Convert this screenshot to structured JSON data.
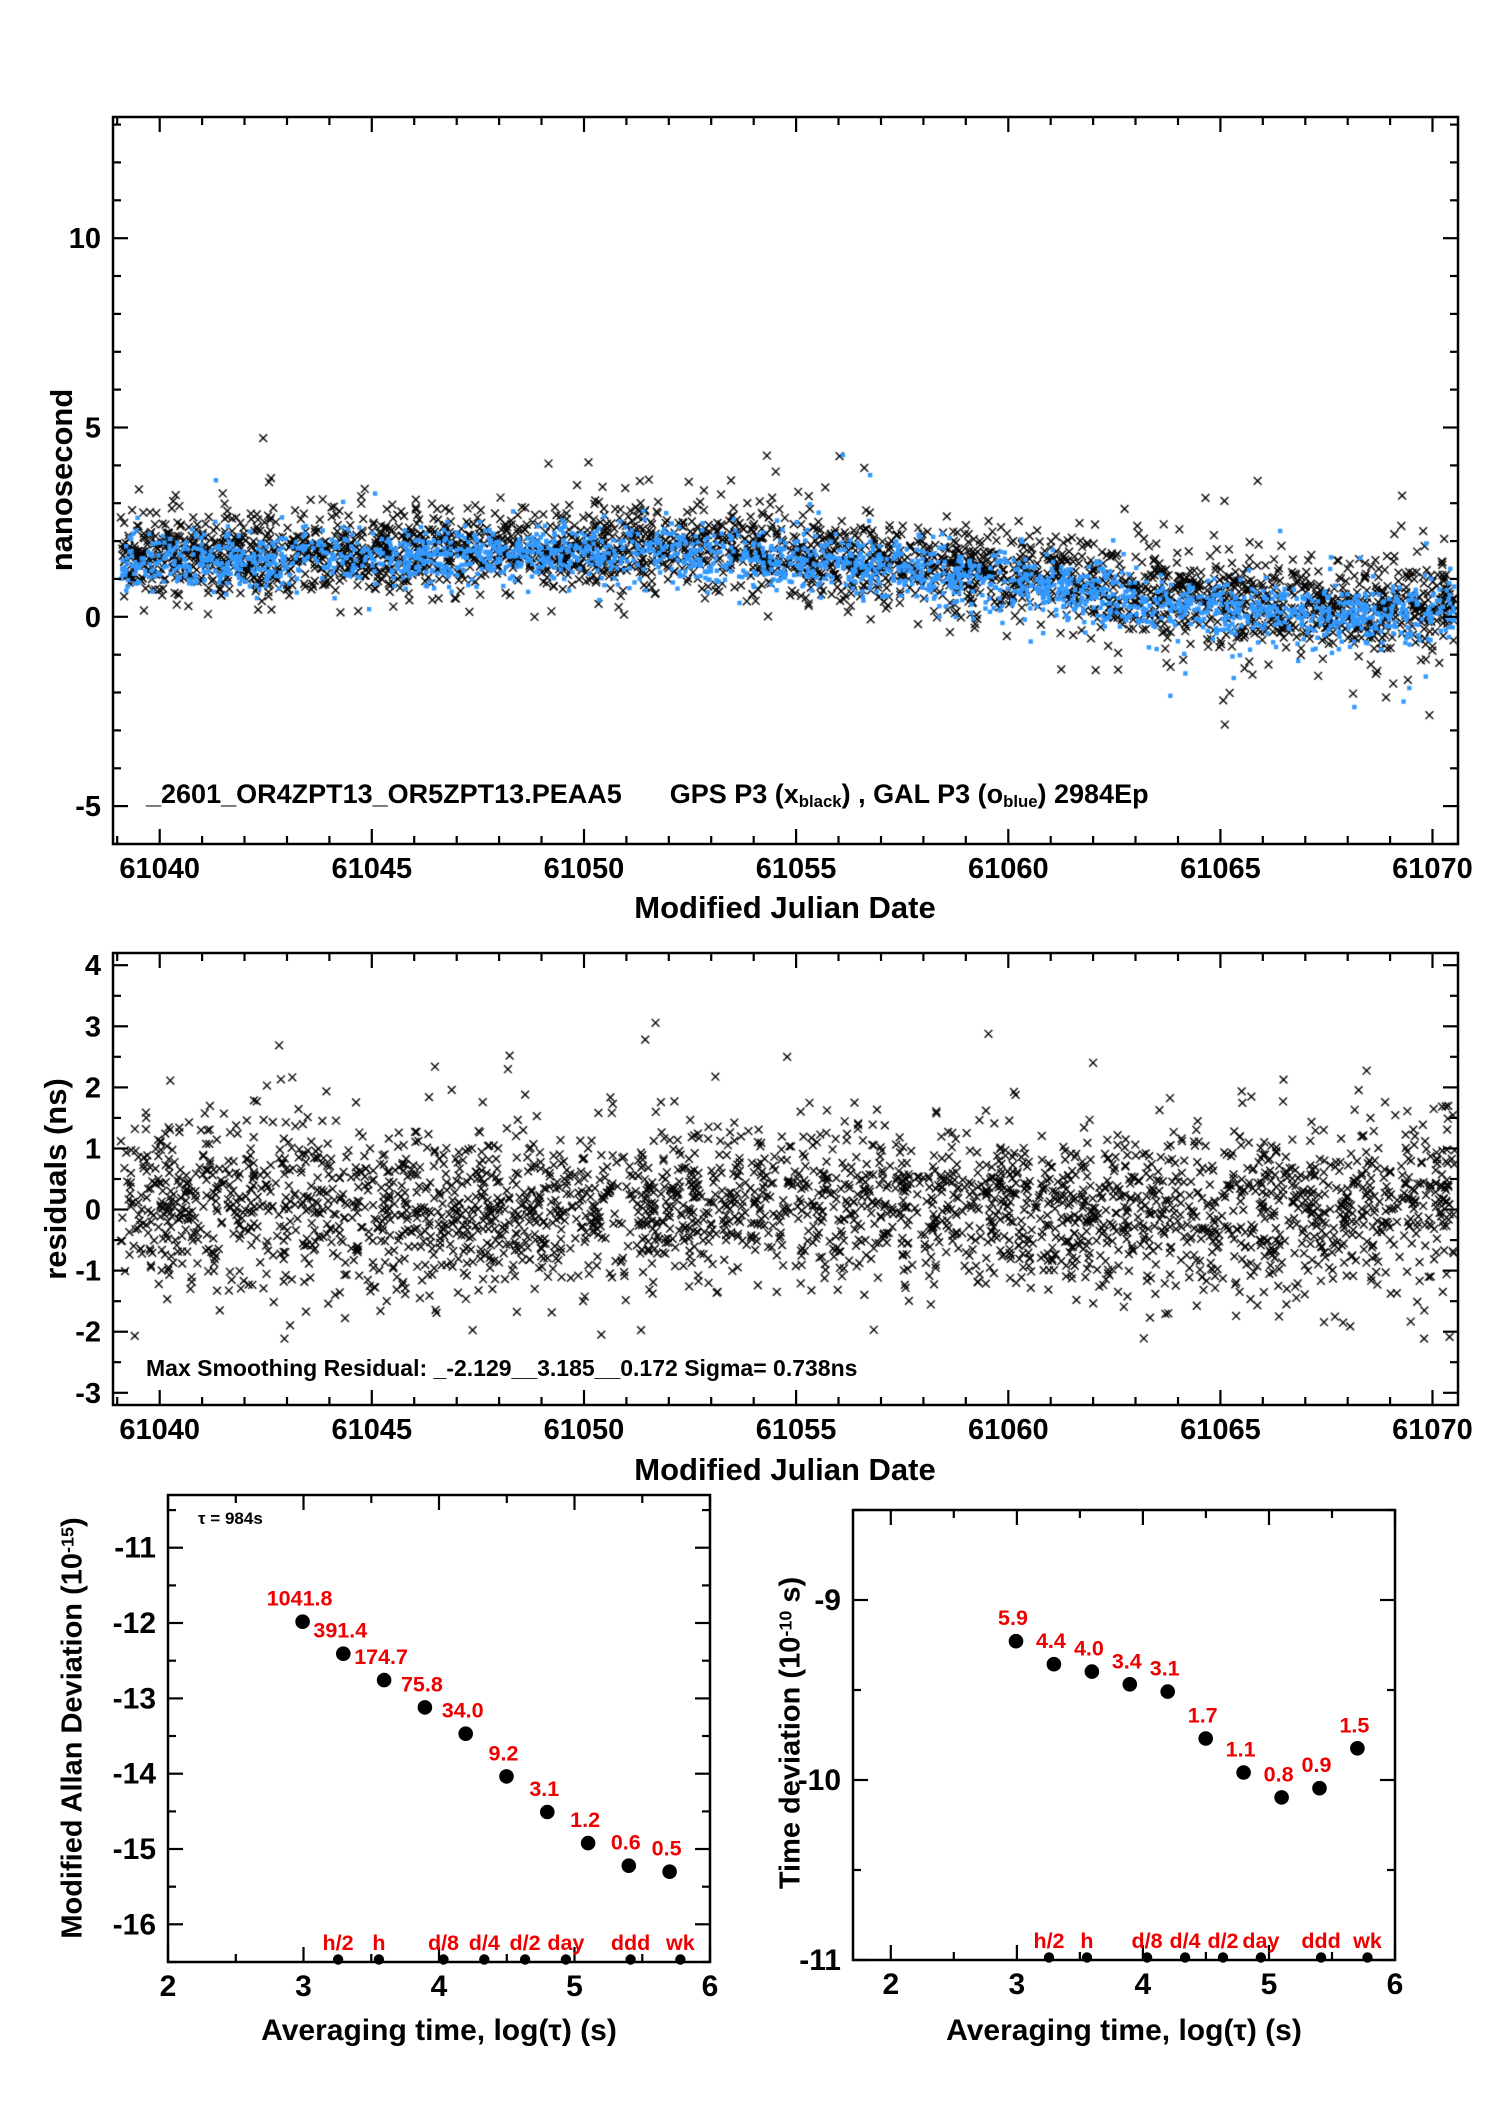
{
  "page": {
    "background": "#ffffff",
    "foreground": "#000000",
    "accent_red": "#ee0000",
    "accent_blue": "#3399ff"
  },
  "chart_data": [
    {
      "id": "top-scatter",
      "type": "scatter",
      "xlabel": "Modified Julian Date",
      "ylabel": "nanosecond",
      "legend_parts": [
        {
          "t": "_2601_OR4ZPT13_OR5ZPT13.PEAA5"
        },
        {
          "gap": 48
        },
        {
          "t": "GPS P3 (x"
        },
        {
          "sub": "black"
        },
        {
          "t": ") ,  GAL P3 (o"
        },
        {
          "sub": "blue"
        },
        {
          "t": ")  2984Ep"
        }
      ],
      "legend_plain": "_2601_OR4ZPT13_OR5ZPT13.PEAA5  GPS P3 (x black),  GAL P3 (o blue)  2984Ep",
      "xlim": [
        61038.9,
        61070.6
      ],
      "ylim": [
        -6,
        13.2
      ],
      "x_ticks": [
        61040,
        61045,
        61050,
        61055,
        61060,
        61065,
        61070
      ],
      "x_minor": 1,
      "y_ticks": [
        -5,
        0,
        5,
        10
      ],
      "y_minor": 1,
      "grid": false,
      "seed": 987123,
      "series": [
        {
          "name": "GPS P3",
          "marker": "x",
          "color": "#000000",
          "n": 2900,
          "sigma": 0.58,
          "trend": [
            [
              61039,
              1.55
            ],
            [
              61043,
              1.7
            ],
            [
              61047,
              1.75
            ],
            [
              61050,
              1.85
            ],
            [
              61053,
              1.8
            ],
            [
              61055,
              1.7
            ],
            [
              61057,
              1.45
            ],
            [
              61059,
              1.25
            ],
            [
              61061,
              1.0
            ],
            [
              61063,
              0.7
            ],
            [
              61065,
              0.45
            ],
            [
              61067,
              0.3
            ],
            [
              61069,
              0.25
            ],
            [
              61071,
              0.35
            ]
          ],
          "outlier_up_p": 0.022,
          "outlier_dn_p": 0.03
        },
        {
          "name": "GAL P3",
          "marker": "dot",
          "color": "#3399ff",
          "n": 2200,
          "sigma": 0.4,
          "trend": [
            [
              61039,
              1.4
            ],
            [
              61043,
              1.55
            ],
            [
              61047,
              1.6
            ],
            [
              61050,
              1.7
            ],
            [
              61053,
              1.65
            ],
            [
              61055,
              1.5
            ],
            [
              61057,
              1.25
            ],
            [
              61059,
              1.05
            ],
            [
              61061,
              0.8
            ],
            [
              61063,
              0.45
            ],
            [
              61065,
              0.2
            ],
            [
              61067,
              0.05
            ],
            [
              61069,
              0.0
            ],
            [
              61071,
              0.15
            ]
          ],
          "outlier_up_p": 0.008,
          "outlier_dn_p": 0.02
        }
      ]
    },
    {
      "id": "residuals-scatter",
      "type": "scatter",
      "xlabel": "Modified Julian Date",
      "ylabel": "residuals (ns)",
      "annotation": "Max Smoothing Residual: _-2.129__3.185__0.172  Sigma= 0.738ns",
      "stats": {
        "min": -2.129,
        "max": 3.185,
        "mean": 0.172,
        "sigma_ns": 0.738
      },
      "xlim": [
        61038.9,
        61070.6
      ],
      "ylim": [
        -3.2,
        4.2
      ],
      "x_ticks": [
        61040,
        61045,
        61050,
        61055,
        61060,
        61065,
        61070
      ],
      "x_minor": 1,
      "y_ticks": [
        -3,
        -2,
        -1,
        0,
        1,
        2,
        3,
        4
      ],
      "y_minor": 0.5,
      "grid": false,
      "seed": 555333,
      "series": [
        {
          "name": "smoothing residuals",
          "marker": "x",
          "color": "#000000",
          "n": 2900,
          "sigma": 0.7,
          "clip": [
            -2.129,
            3.185
          ],
          "trend": [
            [
              61039,
              0.2
            ],
            [
              61044,
              0.05
            ],
            [
              61048,
              -0.05
            ],
            [
              61052,
              0.1
            ],
            [
              61056,
              0.1
            ],
            [
              61060,
              0.0
            ],
            [
              61064,
              -0.1
            ],
            [
              61068,
              -0.05
            ],
            [
              61071,
              0.05
            ]
          ],
          "outlier_up_p": 0.006,
          "outlier_dn_p": 0.004
        }
      ]
    },
    {
      "id": "mdev",
      "type": "scatter",
      "xlabel": "Averaging time, log(τ) (s)",
      "ylabel_parts": [
        {
          "t": "Modified Allan Deviation (10"
        },
        {
          "sup": "-15"
        },
        {
          "t": ")"
        }
      ],
      "ylabel_plain": "Modified Allan Deviation (10^-15)",
      "annotation": "τ = 984s",
      "xlim": [
        2,
        6
      ],
      "ylim": [
        -16.5,
        -10.3
      ],
      "x_ticks": [
        2,
        3,
        4,
        5,
        6
      ],
      "x_minor": 0.5,
      "y_ticks": [
        -11,
        -12,
        -13,
        -14,
        -15,
        -16
      ],
      "y_minor": 0.5,
      "unit_exponent": -15,
      "x_log_tau": [
        2.993,
        3.294,
        3.595,
        3.896,
        4.197,
        4.498,
        4.799,
        5.1,
        5.401,
        5.702
      ],
      "values": [
        1041.8,
        391.4,
        174.7,
        75.8,
        34.0,
        9.2,
        3.1,
        1.2,
        0.6,
        0.5
      ],
      "point_labels": [
        "1041.8",
        "391.4",
        "174.7",
        "75.8",
        "34.0",
        "9.2",
        "3.1",
        "1.2",
        "0.6",
        "0.5"
      ],
      "time_markers": [
        [
          "h/2",
          3.2553
        ],
        [
          "h",
          3.5563
        ],
        [
          "d/8",
          4.0334
        ],
        [
          "d/4",
          4.3345
        ],
        [
          "d/2",
          4.6355
        ],
        [
          "day",
          4.9365
        ],
        [
          "ddd",
          5.4137
        ],
        [
          "wk",
          5.7816
        ]
      ]
    },
    {
      "id": "tdev",
      "type": "scatter",
      "xlabel": "Averaging time, log(τ) (s)",
      "ylabel_parts": [
        {
          "t": "Time deviation (10"
        },
        {
          "sup": "-10"
        },
        {
          "t": " s)"
        }
      ],
      "ylabel_plain": "Time deviation (10^-10 s)",
      "annotation": "",
      "xlim": [
        1.7,
        6.0
      ],
      "ylim": [
        -11,
        -8.5
      ],
      "x_ticks": [
        2,
        3,
        4,
        5,
        6
      ],
      "x_minor": 0.5,
      "y_ticks": [
        -9,
        -10,
        -11
      ],
      "y_minor": 0.5,
      "unit_exponent": -10,
      "x_log_tau": [
        2.993,
        3.294,
        3.595,
        3.896,
        4.197,
        4.498,
        4.799,
        5.1,
        5.401,
        5.702
      ],
      "values": [
        5.9,
        4.4,
        4.0,
        3.4,
        3.1,
        1.7,
        1.1,
        0.8,
        0.9,
        1.5
      ],
      "point_labels": [
        "5.9",
        "4.4",
        "4.0",
        "3.4",
        "3.1",
        "1.7",
        "1.1",
        "0.8",
        "0.9",
        "1.5"
      ],
      "time_markers": [
        [
          "h/2",
          3.2553
        ],
        [
          "h",
          3.5563
        ],
        [
          "d/8",
          4.0334
        ],
        [
          "d/4",
          4.3345
        ],
        [
          "d/2",
          4.6355
        ],
        [
          "day",
          4.9365
        ],
        [
          "ddd",
          5.4137
        ],
        [
          "wk",
          5.7816
        ]
      ]
    }
  ]
}
